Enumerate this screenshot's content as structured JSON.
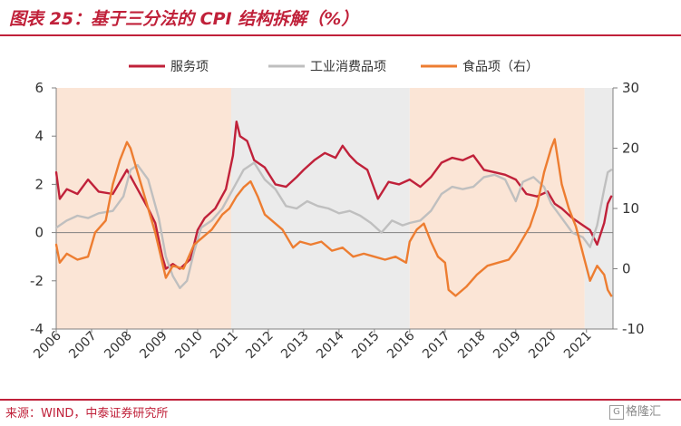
{
  "header": {
    "title": "图表 25：基于三分法的 CPI 结构拆解（%）"
  },
  "footer": {
    "source": "来源：WIND，中泰证券研究所",
    "watermark_icon": "G",
    "watermark_text": "格隆汇"
  },
  "colors": {
    "services": "#c0213a",
    "industrial": "#bfbfbf",
    "food": "#ed7d31",
    "shade_peach": "#fbe5d6",
    "shade_gray": "#ebebeb",
    "axis": "#808080"
  },
  "chart_data": {
    "type": "line",
    "title": "基于三分法的 CPI 结构拆解（%）",
    "x_range": [
      2006.0,
      2021.75
    ],
    "x_ticks": [
      "2006",
      "2007",
      "2008",
      "2009",
      "2010",
      "2011",
      "2012",
      "2013",
      "2014",
      "2015",
      "2016",
      "2017",
      "2018",
      "2019",
      "2020",
      "2021"
    ],
    "y_left": {
      "range": [
        -4,
        6
      ],
      "ticks": [
        "-4",
        "-2",
        "0",
        "2",
        "4",
        "6"
      ]
    },
    "y_right": {
      "range": [
        -10,
        30
      ],
      "ticks": [
        "-10",
        "0",
        "10",
        "20",
        "30"
      ]
    },
    "legend": [
      "服务项",
      "工业消费品项",
      "食品项（右）"
    ],
    "shaded_periods": [
      {
        "start": 2006.0,
        "end": 2010.95,
        "kind": "peach"
      },
      {
        "start": 2010.95,
        "end": 2016.0,
        "kind": "gray"
      },
      {
        "start": 2016.0,
        "end": 2020.95,
        "kind": "peach"
      },
      {
        "start": 2020.95,
        "end": 2021.75,
        "kind": "gray"
      }
    ],
    "series": [
      {
        "name": "服务项",
        "axis": "left",
        "color": "#c0213a",
        "x": [
          2006.0,
          2006.1,
          2006.3,
          2006.6,
          2006.9,
          2007.2,
          2007.6,
          2008.0,
          2008.3,
          2008.6,
          2008.8,
          2009.0,
          2009.1,
          2009.3,
          2009.5,
          2009.8,
          2010.0,
          2010.2,
          2010.5,
          2010.8,
          2011.0,
          2011.1,
          2011.2,
          2011.4,
          2011.6,
          2011.9,
          2012.2,
          2012.5,
          2012.8,
          2013.0,
          2013.3,
          2013.6,
          2013.9,
          2014.1,
          2014.3,
          2014.5,
          2014.8,
          2015.1,
          2015.4,
          2015.7,
          2016.0,
          2016.3,
          2016.6,
          2016.9,
          2017.2,
          2017.5,
          2017.8,
          2018.1,
          2018.4,
          2018.7,
          2019.0,
          2019.3,
          2019.6,
          2019.9,
          2020.1,
          2020.3,
          2020.6,
          2020.9,
          2021.1,
          2021.3,
          2021.5,
          2021.6,
          2021.7
        ],
        "y": [
          2.5,
          1.4,
          1.8,
          1.6,
          2.2,
          1.7,
          1.6,
          2.6,
          1.8,
          1.0,
          0.4,
          -1.0,
          -1.5,
          -1.3,
          -1.5,
          -1.1,
          0.1,
          0.6,
          1.0,
          1.8,
          3.2,
          4.6,
          4.0,
          3.8,
          3.0,
          2.7,
          2.0,
          1.9,
          2.3,
          2.6,
          3.0,
          3.3,
          3.1,
          3.6,
          3.2,
          2.9,
          2.6,
          1.4,
          2.1,
          2.0,
          2.2,
          1.9,
          2.3,
          2.9,
          3.1,
          3.0,
          3.2,
          2.6,
          2.5,
          2.4,
          2.2,
          1.6,
          1.5,
          1.7,
          1.2,
          1.0,
          0.6,
          0.3,
          0.1,
          -0.5,
          0.4,
          1.2,
          1.5
        ]
      },
      {
        "name": "工业消费品项",
        "axis": "left",
        "color": "#bfbfbf",
        "x": [
          2006.0,
          2006.3,
          2006.6,
          2006.9,
          2007.2,
          2007.6,
          2007.9,
          2008.1,
          2008.3,
          2008.6,
          2008.9,
          2009.1,
          2009.3,
          2009.5,
          2009.7,
          2009.9,
          2010.1,
          2010.4,
          2010.7,
          2011.0,
          2011.3,
          2011.6,
          2011.9,
          2012.2,
          2012.5,
          2012.8,
          2013.1,
          2013.4,
          2013.7,
          2014.0,
          2014.3,
          2014.6,
          2014.9,
          2015.2,
          2015.5,
          2015.8,
          2016.0,
          2016.3,
          2016.6,
          2016.9,
          2017.2,
          2017.5,
          2017.8,
          2018.1,
          2018.4,
          2018.7,
          2019.0,
          2019.2,
          2019.5,
          2019.8,
          2020.0,
          2020.3,
          2020.6,
          2020.9,
          2021.1,
          2021.3,
          2021.5,
          2021.6,
          2021.7
        ],
        "y": [
          0.2,
          0.5,
          0.7,
          0.6,
          0.8,
          0.9,
          1.5,
          2.6,
          2.8,
          2.2,
          0.6,
          -1.0,
          -1.8,
          -2.3,
          -2.0,
          -0.8,
          0.2,
          0.5,
          1.0,
          1.8,
          2.6,
          2.9,
          2.2,
          1.8,
          1.1,
          1.0,
          1.3,
          1.1,
          1.0,
          0.8,
          0.9,
          0.7,
          0.4,
          0.0,
          0.5,
          0.3,
          0.4,
          0.5,
          0.9,
          1.6,
          1.9,
          1.8,
          1.9,
          2.3,
          2.4,
          2.2,
          1.3,
          2.1,
          2.3,
          1.9,
          1.2,
          0.6,
          0.0,
          -0.2,
          -0.6,
          0.3,
          1.8,
          2.5,
          2.6
        ]
      },
      {
        "name": "食品项（右）",
        "axis": "right",
        "color": "#ed7d31",
        "x": [
          2006.0,
          2006.1,
          2006.3,
          2006.6,
          2006.9,
          2007.1,
          2007.4,
          2007.6,
          2007.8,
          2008.0,
          2008.1,
          2008.3,
          2008.6,
          2008.8,
          2009.0,
          2009.1,
          2009.3,
          2009.6,
          2009.9,
          2010.1,
          2010.4,
          2010.7,
          2010.9,
          2011.1,
          2011.3,
          2011.5,
          2011.7,
          2011.9,
          2012.1,
          2012.4,
          2012.7,
          2012.9,
          2013.2,
          2013.5,
          2013.8,
          2014.1,
          2014.4,
          2014.7,
          2015.0,
          2015.3,
          2015.6,
          2015.9,
          2016.0,
          2016.2,
          2016.4,
          2016.6,
          2016.8,
          2017.0,
          2017.1,
          2017.3,
          2017.6,
          2017.9,
          2018.2,
          2018.5,
          2018.8,
          2019.0,
          2019.2,
          2019.4,
          2019.6,
          2019.8,
          2020.0,
          2020.1,
          2020.3,
          2020.5,
          2020.7,
          2020.9,
          2021.1,
          2021.3,
          2021.5,
          2021.6,
          2021.7
        ],
        "y": [
          4.0,
          1.0,
          2.5,
          1.5,
          2.0,
          6.0,
          8.0,
          14.0,
          18.0,
          21.0,
          20.0,
          16.0,
          10.0,
          6.0,
          1.0,
          -1.5,
          0.5,
          0.0,
          4.0,
          5.0,
          6.5,
          9.0,
          10.0,
          12.0,
          13.5,
          14.5,
          12.0,
          9.0,
          8.0,
          6.5,
          3.5,
          4.5,
          4.0,
          4.5,
          3.0,
          3.5,
          2.0,
          2.5,
          2.0,
          1.5,
          2.0,
          1.0,
          4.5,
          6.5,
          7.5,
          4.5,
          2.0,
          1.0,
          -3.5,
          -4.5,
          -3.0,
          -1.0,
          0.5,
          1.0,
          1.5,
          3.0,
          5.0,
          7.0,
          10.5,
          16.0,
          20.0,
          21.5,
          14.0,
          10.0,
          7.0,
          2.5,
          -2.0,
          0.5,
          -1.0,
          -3.5,
          -4.5
        ]
      }
    ]
  }
}
